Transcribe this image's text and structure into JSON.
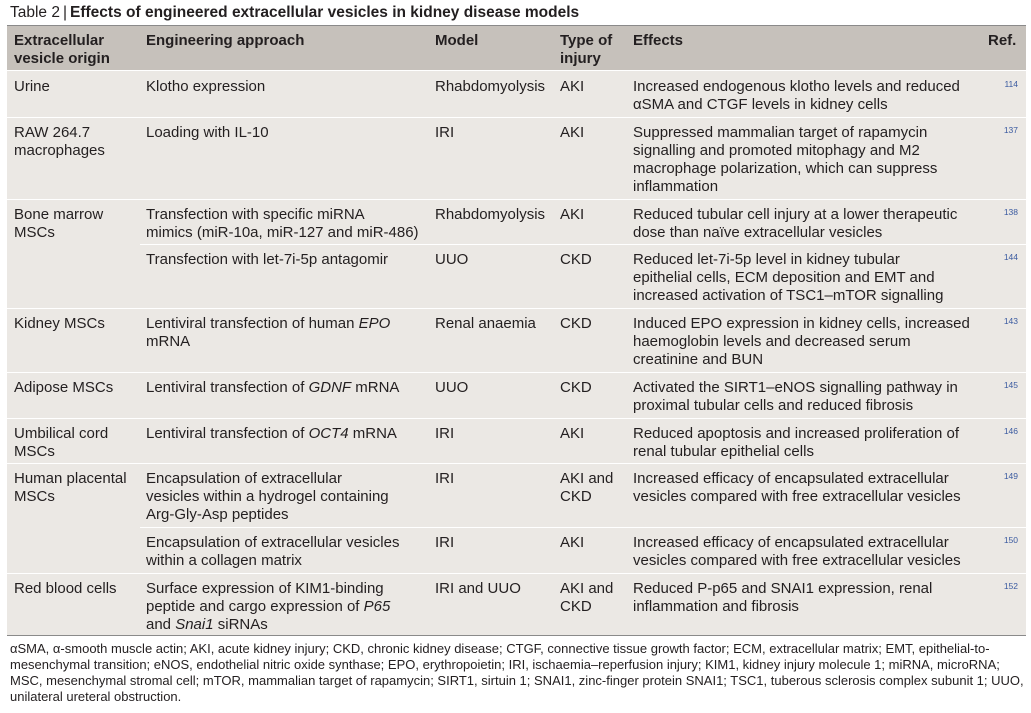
{
  "caption": {
    "label": "Table 2",
    "separator": "|",
    "title": "Effects of engineered extracellular vesicles in kidney disease models"
  },
  "headers": {
    "origin": [
      "Extracellular",
      "vesicle origin"
    ],
    "approach": "Engineering approach",
    "model": "Model",
    "injury": [
      "Type of",
      "injury"
    ],
    "effects": "Effects",
    "ref": "Ref."
  },
  "rows": [
    {
      "origin": [
        "Urine"
      ],
      "approach": [
        "Klotho expression"
      ],
      "model": [
        "Rhabdomyolysis"
      ],
      "injury": [
        "AKI"
      ],
      "effects": [
        "Increased endogenous klotho levels and reduced",
        "αSMA and CTGF levels in kidney cells"
      ],
      "ref": "114"
    },
    {
      "origin": [
        "RAW 264.7",
        "macrophages"
      ],
      "approach": [
        "Loading with IL-10"
      ],
      "model": [
        "IRI"
      ],
      "injury": [
        "AKI"
      ],
      "effects": [
        "Suppressed mammalian target of rapamycin",
        "signalling and promoted mitophagy and M2",
        "macrophage polarization, which can suppress",
        "inflammation"
      ],
      "ref": "137"
    },
    {
      "origin": [
        "Bone marrow",
        "MSCs"
      ],
      "approach": [
        "Transfection with specific miRNA",
        "mimics (miR-10a, miR-127 and miR-486)"
      ],
      "model": [
        "Rhabdomyolysis"
      ],
      "injury": [
        "AKI"
      ],
      "effects": [
        "Reduced tubular cell injury at a lower therapeutic",
        "dose than naïve extracellular vesicles"
      ],
      "ref": "138"
    },
    {
      "origin": [],
      "approach": [
        "Transfection with let-7i-5p antagomir"
      ],
      "model": [
        "UUO"
      ],
      "injury": [
        "CKD"
      ],
      "effects": [
        "Reduced let-7i-5p level in kidney tubular",
        "epithelial cells, ECM deposition and EMT and",
        "increased activation of TSC1–mTOR signalling"
      ],
      "ref": "144"
    },
    {
      "origin": [
        "Kidney MSCs"
      ],
      "approach_pre": "Lentiviral transfection of human ",
      "approach_em": "EPO",
      "approach_line2": "mRNA",
      "model": [
        "Renal anaemia"
      ],
      "injury": [
        "CKD"
      ],
      "effects": [
        "Induced EPO expression in kidney cells, increased",
        "haemoglobin levels and decreased serum",
        "creatinine and BUN"
      ],
      "ref": "143"
    },
    {
      "origin": [
        "Adipose MSCs"
      ],
      "approach_pre": "Lentiviral transfection of ",
      "approach_em": "GDNF",
      "approach_post": " mRNA",
      "model": [
        "UUO"
      ],
      "injury": [
        "CKD"
      ],
      "effects": [
        "Activated the SIRT1–eNOS signalling pathway in",
        "proximal tubular cells and reduced fibrosis"
      ],
      "ref": "145"
    },
    {
      "origin": [
        "Umbilical cord",
        "MSCs"
      ],
      "approach_pre": "Lentiviral transfection of ",
      "approach_em": "OCT4",
      "approach_post": " mRNA",
      "model": [
        "IRI"
      ],
      "injury": [
        "AKI"
      ],
      "effects": [
        "Reduced apoptosis and increased proliferation of",
        "renal tubular epithelial cells"
      ],
      "ref": "146"
    },
    {
      "origin": [
        "Human placental",
        "MSCs"
      ],
      "approach": [
        "Encapsulation of extracellular",
        "vesicles within a hydrogel containing",
        "Arg-Gly-Asp peptides"
      ],
      "model": [
        "IRI"
      ],
      "injury": [
        "AKI and",
        "CKD"
      ],
      "effects": [
        "Increased efficacy of encapsulated extracellular",
        "vesicles compared with free extracellular vesicles"
      ],
      "ref": "149"
    },
    {
      "origin": [],
      "approach": [
        "Encapsulation of extracellular vesicles",
        "within a collagen matrix"
      ],
      "model": [
        "IRI"
      ],
      "injury": [
        "AKI"
      ],
      "effects": [
        "Increased efficacy of encapsulated extracellular",
        "vesicles compared with free extracellular vesicles"
      ],
      "ref": "150"
    },
    {
      "origin": [
        "Red blood cells"
      ],
      "approach_l1": "Surface expression of KIM1-binding",
      "approach_l2_pre": "peptide and cargo expression of ",
      "approach_l2_em": "P65",
      "approach_l3_pre": "and ",
      "approach_l3_em": "Snai1",
      "approach_l3_post": " siRNAs",
      "model": [
        "IRI and UUO"
      ],
      "injury": [
        "AKI and",
        "CKD"
      ],
      "effects": [
        "Reduced P-p65 and SNAI1 expression, renal",
        "inflammation and fibrosis"
      ],
      "ref": "152"
    }
  ],
  "footnote": "αSMA, α-smooth muscle actin; AKI, acute kidney injury; CKD, chronic kidney disease; CTGF, connective tissue growth factor; ECM, extracellular matrix; EMT, epithelial-to-mesenchymal transition; eNOS, endothelial nitric oxide synthase; EPO, erythropoietin; IRI, ischaemia–reperfusion injury; KIM1, kidney injury molecule 1; miRNA, microRNA; MSC, mesenchymal stromal cell; mTOR, mammalian target of rapamycin; SIRT1, sirtuin 1; SNAI1, zinc-finger protein SNAI1; TSC1, tuberous sclerosis complex subunit 1; UUO, unilateral ureteral obstruction."
}
